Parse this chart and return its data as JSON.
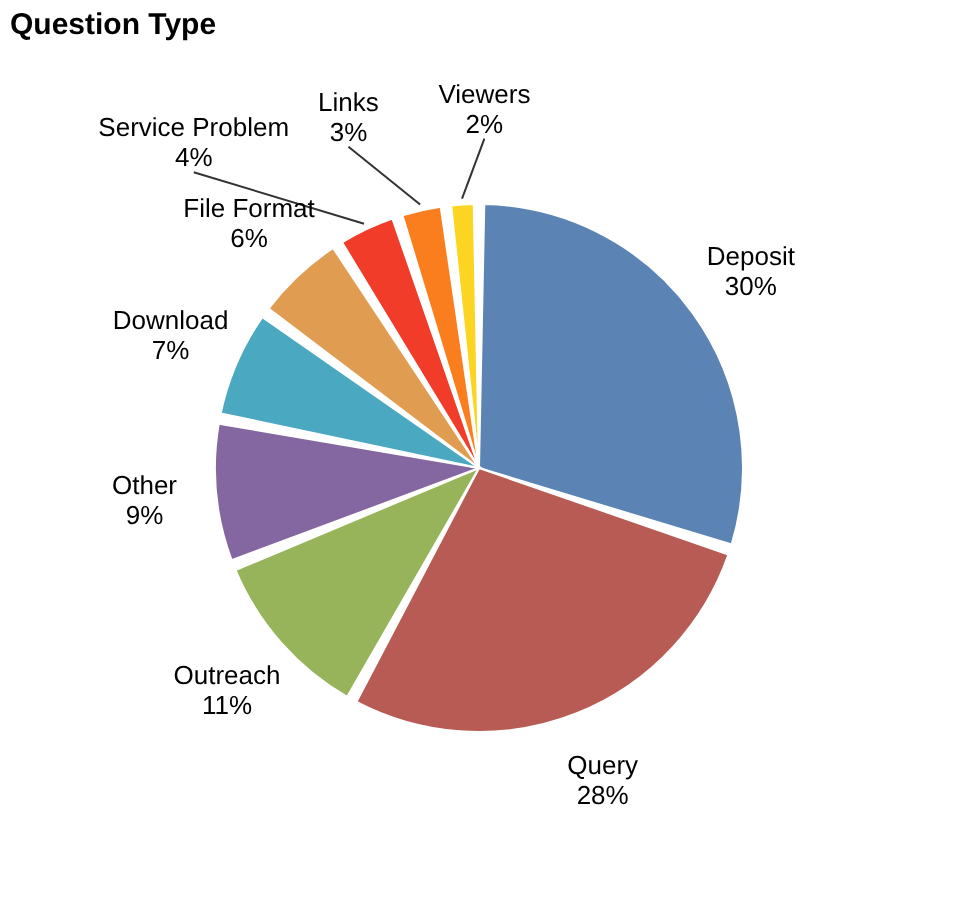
{
  "chart_data": {
    "type": "pie",
    "title": "Question Type",
    "categories": [
      "Deposit",
      "Query",
      "Outreach",
      "Other",
      "Download",
      "File Format",
      "Service Problem",
      "Links",
      "Viewers"
    ],
    "values": [
      30,
      28,
      11,
      9,
      7,
      6,
      4,
      3,
      2
    ],
    "value_labels": [
      "30%",
      "28%",
      "11%",
      "9%",
      "7%",
      "6%",
      "4%",
      "3%",
      "2%"
    ],
    "colors": [
      "#5b84b5",
      "#b85b54",
      "#98b45a",
      "#8466a0",
      "#4aa8c0",
      "#e09d52",
      "#f03c28",
      "#fb7e1e",
      "#fcd523"
    ],
    "legend": false
  }
}
